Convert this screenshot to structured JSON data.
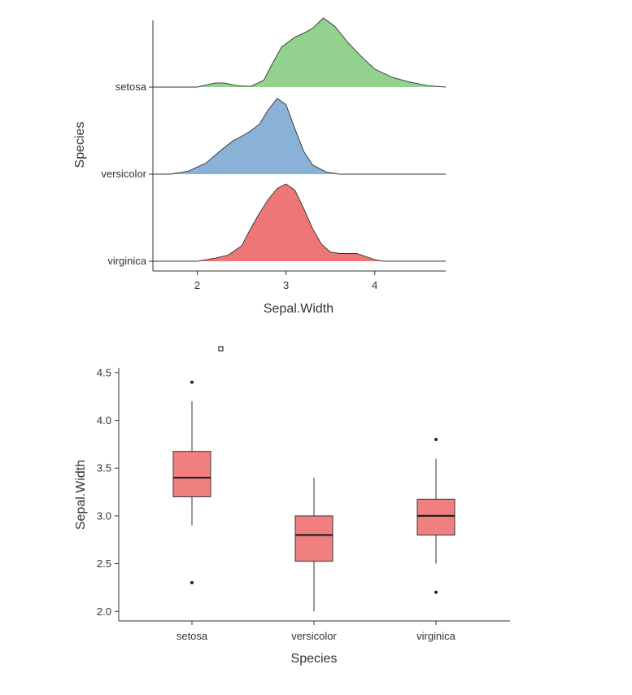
{
  "chart_data": [
    {
      "type": "ridgeline",
      "title": "",
      "xlabel": "Sepal.Width",
      "ylabel": "Species",
      "xlim": [
        1.5,
        4.8
      ],
      "x_ticks": [
        2,
        3,
        4
      ],
      "categories_top_to_bottom": [
        "setosa",
        "versicolor",
        "virginica"
      ],
      "series": [
        {
          "name": "setosa",
          "color": "#93d18f",
          "x": [
            2.0,
            2.2,
            2.3,
            2.45,
            2.6,
            2.75,
            2.85,
            2.95,
            3.1,
            3.2,
            3.3,
            3.42,
            3.55,
            3.7,
            3.85,
            4.0,
            4.2,
            4.4,
            4.6,
            4.8
          ],
          "density": [
            0.0,
            0.06,
            0.06,
            0.02,
            0.01,
            0.1,
            0.35,
            0.58,
            0.72,
            0.78,
            0.85,
            1.0,
            0.88,
            0.64,
            0.44,
            0.26,
            0.14,
            0.07,
            0.02,
            0.0
          ]
        },
        {
          "name": "versicolor",
          "color": "#8ab2d7",
          "x": [
            1.7,
            1.9,
            2.1,
            2.25,
            2.4,
            2.5,
            2.6,
            2.7,
            2.8,
            2.9,
            3.0,
            3.1,
            3.2,
            3.3,
            3.45,
            3.6,
            3.8
          ],
          "density": [
            0.0,
            0.04,
            0.15,
            0.3,
            0.44,
            0.5,
            0.57,
            0.66,
            0.85,
            1.0,
            0.92,
            0.6,
            0.3,
            0.12,
            0.03,
            0.0,
            0.0
          ]
        },
        {
          "name": "virginica",
          "color": "#ee7676",
          "x": [
            2.0,
            2.2,
            2.35,
            2.5,
            2.6,
            2.7,
            2.8,
            2.9,
            3.0,
            3.1,
            3.2,
            3.3,
            3.4,
            3.5,
            3.6,
            3.7,
            3.8,
            3.9,
            4.0,
            4.1
          ],
          "density": [
            0.0,
            0.04,
            0.08,
            0.2,
            0.42,
            0.62,
            0.8,
            0.94,
            1.0,
            0.92,
            0.68,
            0.42,
            0.22,
            0.12,
            0.1,
            0.1,
            0.1,
            0.06,
            0.02,
            0.0
          ]
        }
      ]
    },
    {
      "type": "box",
      "title": "",
      "xlabel": "Species",
      "ylabel": "Sepal.Width",
      "ylim": [
        1.9,
        4.55
      ],
      "y_ticks": [
        "2.0",
        "2.5",
        "3.0",
        "3.5",
        "4.0",
        "4.5"
      ],
      "fill_color": "#f08080",
      "categories": [
        "setosa",
        "versicolor",
        "virginica"
      ],
      "boxes": [
        {
          "name": "setosa",
          "min": 2.9,
          "q1": 3.2,
          "median": 3.4,
          "q3": 3.675,
          "max": 4.2,
          "outliers": [
            4.4,
            2.3
          ]
        },
        {
          "name": "versicolor",
          "min": 2.0,
          "q1": 2.525,
          "median": 2.8,
          "q3": 3.0,
          "max": 3.4,
          "outliers": []
        },
        {
          "name": "virginica",
          "min": 2.5,
          "q1": 2.8,
          "median": 3.0,
          "q3": 3.175,
          "max": 3.6,
          "outliers": [
            3.8,
            2.2
          ]
        }
      ]
    }
  ]
}
